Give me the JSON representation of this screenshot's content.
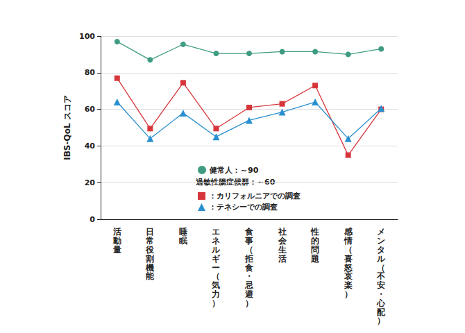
{
  "chart_data": {
    "type": "line",
    "ylabel": "IBS-QoL スコア",
    "categories": [
      "活動量",
      "日常役割機能",
      "睡眠",
      "エネルギー（気力）",
      "食事（拒食・忌避）",
      "社会生活",
      "性的問題",
      "感情（喜怒哀楽）",
      "メンタル（不安・心配）"
    ],
    "series": [
      {
        "name": "健常人：～90",
        "color": "#3f9c82",
        "marker": "circle",
        "values": [
          97,
          87,
          95.5,
          90.5,
          90.5,
          91.5,
          91.5,
          90,
          93
        ]
      },
      {
        "name": "：カリフォルニアでの調査",
        "color": "#d6363b",
        "marker": "square",
        "values": [
          77,
          49.5,
          74.5,
          49.5,
          61,
          63,
          73,
          35,
          60
        ]
      },
      {
        "name": "：テネシーでの調査",
        "color": "#2a8fcf",
        "marker": "triangle",
        "values": [
          64,
          44,
          58,
          45,
          54,
          58.5,
          64,
          44,
          60.5
        ]
      }
    ],
    "annotations": [
      "過敏性腸症候群：～60"
    ],
    "ylim": [
      0,
      100
    ],
    "yticks": [
      0,
      20,
      40,
      60,
      80,
      100
    ],
    "grid": true
  }
}
